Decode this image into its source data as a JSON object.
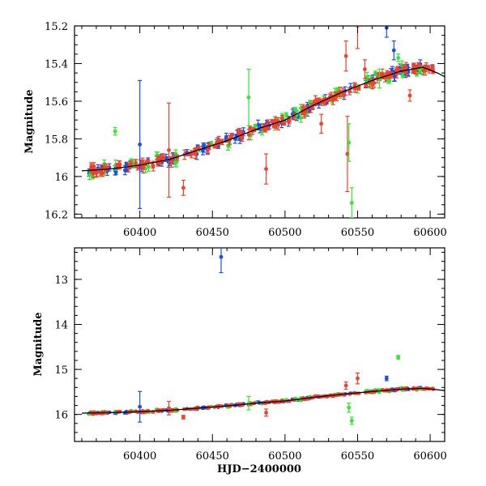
{
  "colors": {
    "green": "#33e633",
    "blue": "#1f4fe0",
    "red": "#f0412b",
    "model": "#000000"
  },
  "chart_data": [
    {
      "type": "scatter",
      "title": "",
      "xlabel": "",
      "ylabel": "Magnitude",
      "xlim": [
        60355,
        60610
      ],
      "ylim": [
        16.22,
        15.2
      ],
      "y_inverted": true,
      "x_ticks": [
        60400,
        60450,
        60500,
        60550,
        60600
      ],
      "y_ticks": [
        15.2,
        15.4,
        15.6,
        15.8,
        16,
        16.2
      ],
      "y_tick_labels": [
        "15.2",
        "15.4",
        "15.6",
        "15.8",
        "16",
        "16.2"
      ],
      "model_curve": {
        "x": [
          60360,
          60380,
          60400,
          60420,
          60440,
          60460,
          60480,
          60500,
          60520,
          60540,
          60560,
          60580,
          60595,
          60605,
          60610
        ],
        "y": [
          15.97,
          15.96,
          15.94,
          15.91,
          15.86,
          15.81,
          15.75,
          15.7,
          15.62,
          15.55,
          15.49,
          15.44,
          15.42,
          15.45,
          15.47
        ]
      },
      "outliers": [
        {
          "series": "blue",
          "x": 60400,
          "y": 15.83,
          "err": 0.34
        },
        {
          "series": "blue",
          "x": 60570,
          "y": 15.21,
          "err": 0.05
        },
        {
          "series": "blue",
          "x": 60575,
          "y": 15.33,
          "err": 0.05
        },
        {
          "series": "red",
          "x": 60420,
          "y": 15.86,
          "err": 0.25
        },
        {
          "series": "red",
          "x": 60430,
          "y": 16.06,
          "err": 0.04
        },
        {
          "series": "red",
          "x": 60487,
          "y": 15.96,
          "err": 0.08
        },
        {
          "series": "red",
          "x": 60525,
          "y": 15.72,
          "err": 0.05
        },
        {
          "series": "red",
          "x": 60542,
          "y": 15.36,
          "err": 0.08
        },
        {
          "series": "red",
          "x": 60543,
          "y": 15.88,
          "err": 0.2
        },
        {
          "series": "red",
          "x": 60550,
          "y": 15.2,
          "err": 0.12
        },
        {
          "series": "red",
          "x": 60555,
          "y": 15.43,
          "err": 0.05
        },
        {
          "series": "red",
          "x": 60586,
          "y": 15.57,
          "err": 0.03
        },
        {
          "series": "green",
          "x": 60383,
          "y": 15.76,
          "err": 0.02
        },
        {
          "series": "green",
          "x": 60475,
          "y": 15.58,
          "err": 0.15
        },
        {
          "series": "green",
          "x": 60544,
          "y": 15.82,
          "err": 0.1
        },
        {
          "series": "green",
          "x": 60546,
          "y": 16.14,
          "err": 0.08
        },
        {
          "series": "green",
          "x": 60565,
          "y": 15.48,
          "err": 0.05
        },
        {
          "series": "green",
          "x": 60578,
          "y": 15.37,
          "err": 0.02
        }
      ]
    },
    {
      "type": "scatter",
      "title": "",
      "xlabel": "HJD−2400000",
      "ylabel": "Magnitude",
      "xlim": [
        60355,
        60610
      ],
      "ylim": [
        16.6,
        12.3
      ],
      "y_inverted": true,
      "x_ticks": [
        60400,
        60450,
        60500,
        60550,
        60600
      ],
      "x_tick_labels": [
        "60400",
        "60450",
        "60500",
        "60550",
        "60600"
      ],
      "y_ticks": [
        13,
        14,
        15,
        16
      ],
      "y_tick_labels": [
        "13",
        "14",
        "15",
        "16"
      ],
      "outliers": [
        {
          "series": "blue",
          "x": 60456,
          "y": 12.5,
          "err": 0.35
        },
        {
          "series": "blue",
          "x": 60400,
          "y": 15.83,
          "err": 0.34
        },
        {
          "series": "red",
          "x": 60550,
          "y": 15.2,
          "err": 0.12
        },
        {
          "series": "red",
          "x": 60542,
          "y": 15.36,
          "err": 0.08
        },
        {
          "series": "red",
          "x": 60487,
          "y": 15.96,
          "err": 0.08
        },
        {
          "series": "red",
          "x": 60430,
          "y": 16.06,
          "err": 0.04
        },
        {
          "series": "red",
          "x": 60420,
          "y": 15.86,
          "err": 0.15
        },
        {
          "series": "green",
          "x": 60578,
          "y": 14.73,
          "err": 0.04
        },
        {
          "series": "green",
          "x": 60546,
          "y": 16.14,
          "err": 0.08
        },
        {
          "series": "green",
          "x": 60544,
          "y": 15.85,
          "err": 0.1
        },
        {
          "series": "green",
          "x": 60475,
          "y": 15.75,
          "err": 0.15
        },
        {
          "series": "green",
          "x": 60565,
          "y": 15.48,
          "err": 0.05
        },
        {
          "series": "blue",
          "x": 60570,
          "y": 15.2,
          "err": 0.05
        }
      ]
    }
  ]
}
